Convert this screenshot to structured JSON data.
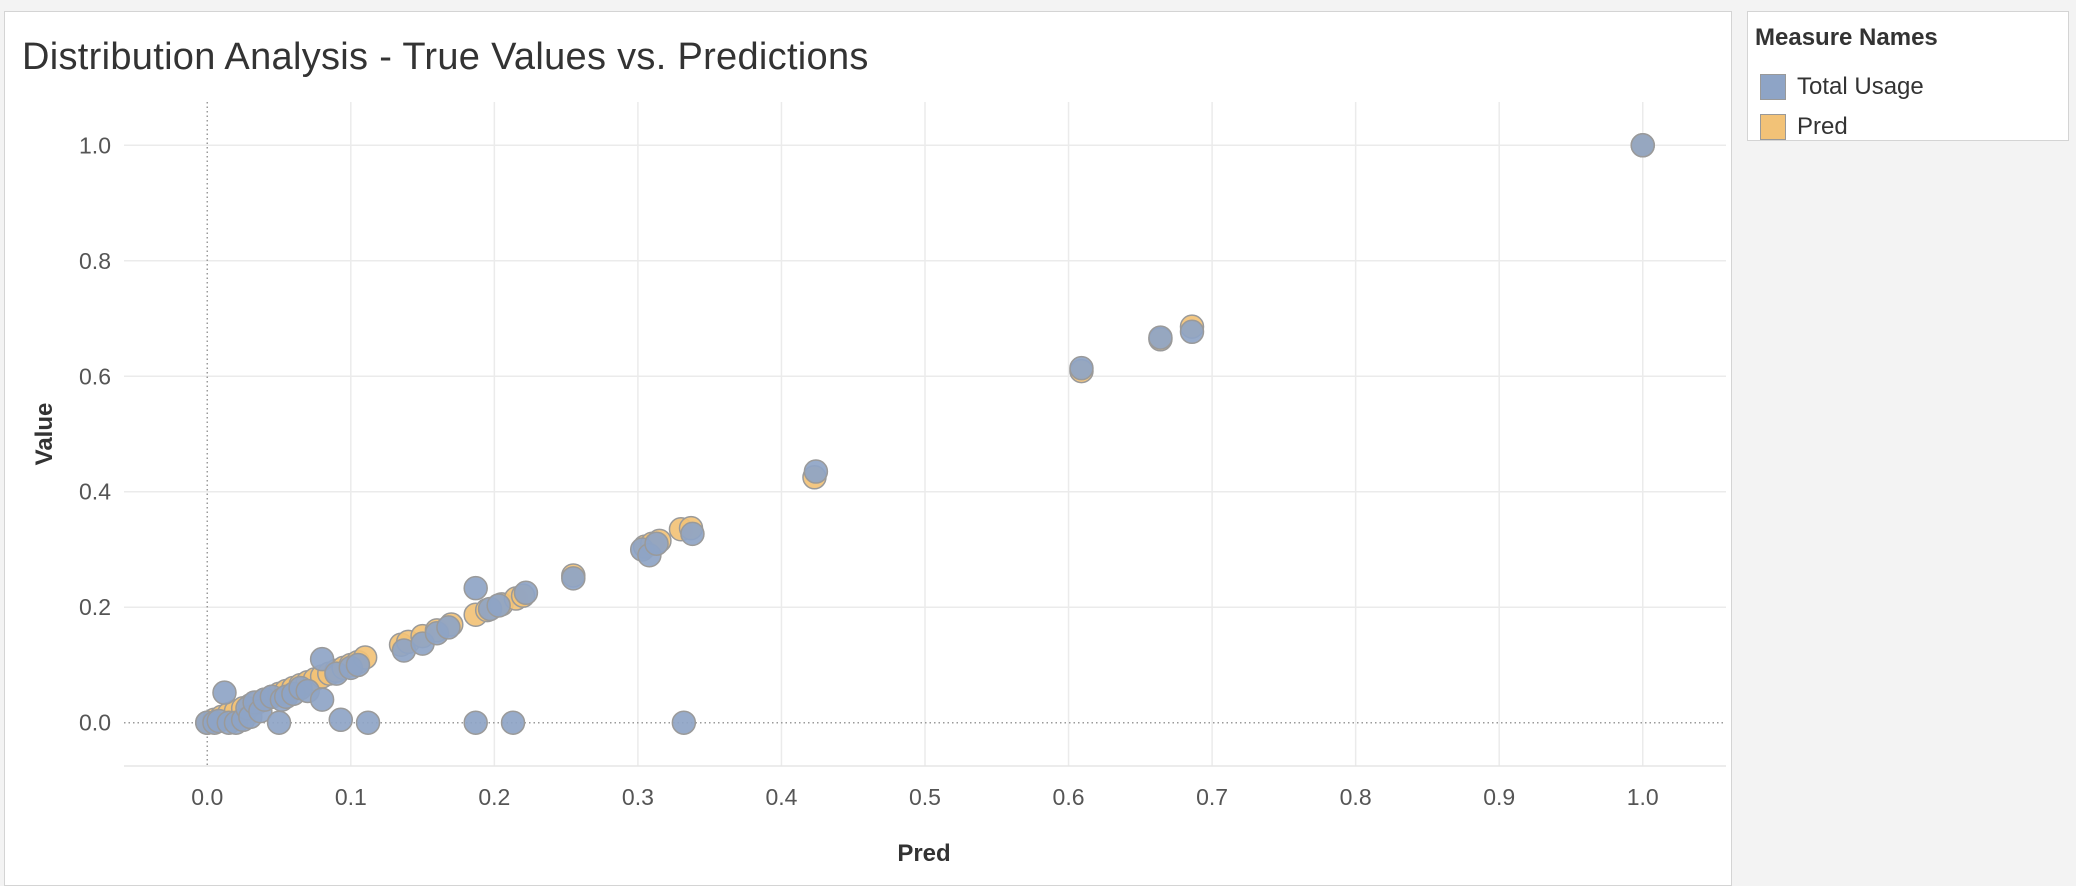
{
  "legend": {
    "title": "Measure Names",
    "items": [
      {
        "label": "Total Usage",
        "color": "#8ea4c6"
      },
      {
        "label": "Pred",
        "color": "#f2c277"
      }
    ]
  },
  "chart_data": {
    "type": "scatter",
    "title": "Distribution Analysis - True Values vs. Predictions",
    "xlabel": "Pred",
    "ylabel": "Value",
    "xlim": [
      -0.058,
      1.058
    ],
    "ylim": [
      -0.075,
      1.075
    ],
    "x_ticks": [
      "0.0",
      "0.1",
      "0.2",
      "0.3",
      "0.4",
      "0.5",
      "0.6",
      "0.7",
      "0.8",
      "0.9",
      "1.0"
    ],
    "y_ticks": [
      "0.0",
      "0.2",
      "0.4",
      "0.6",
      "0.8",
      "1.0"
    ],
    "grid": true,
    "legend_position": "right",
    "series": [
      {
        "name": "Pred",
        "color": "#f2c277",
        "points": [
          [
            0.0,
            0.0
          ],
          [
            0.005,
            0.005
          ],
          [
            0.01,
            0.01
          ],
          [
            0.015,
            0.015
          ],
          [
            0.02,
            0.02
          ],
          [
            0.025,
            0.025
          ],
          [
            0.03,
            0.03
          ],
          [
            0.035,
            0.035
          ],
          [
            0.04,
            0.04
          ],
          [
            0.045,
            0.045
          ],
          [
            0.05,
            0.05
          ],
          [
            0.055,
            0.055
          ],
          [
            0.06,
            0.06
          ],
          [
            0.065,
            0.065
          ],
          [
            0.07,
            0.07
          ],
          [
            0.075,
            0.075
          ],
          [
            0.08,
            0.08
          ],
          [
            0.085,
            0.085
          ],
          [
            0.09,
            0.09
          ],
          [
            0.095,
            0.095
          ],
          [
            0.1,
            0.1
          ],
          [
            0.105,
            0.105
          ],
          [
            0.11,
            0.113
          ],
          [
            0.135,
            0.135
          ],
          [
            0.14,
            0.14
          ],
          [
            0.15,
            0.15
          ],
          [
            0.16,
            0.16
          ],
          [
            0.17,
            0.17
          ],
          [
            0.187,
            0.187
          ],
          [
            0.195,
            0.195
          ],
          [
            0.205,
            0.205
          ],
          [
            0.215,
            0.215
          ],
          [
            0.22,
            0.22
          ],
          [
            0.255,
            0.255
          ],
          [
            0.305,
            0.305
          ],
          [
            0.31,
            0.31
          ],
          [
            0.315,
            0.315
          ],
          [
            0.33,
            0.335
          ],
          [
            0.337,
            0.337
          ],
          [
            0.423,
            0.425
          ],
          [
            0.609,
            0.609
          ],
          [
            0.664,
            0.664
          ],
          [
            0.686,
            0.686
          ],
          [
            1.0,
            1.0
          ]
        ]
      },
      {
        "name": "Total Usage",
        "color": "#8ea4c6",
        "points": [
          [
            0.0,
            0.0
          ],
          [
            0.005,
            0.0
          ],
          [
            0.008,
            0.003
          ],
          [
            0.012,
            0.052
          ],
          [
            0.015,
            0.0
          ],
          [
            0.02,
            0.0
          ],
          [
            0.025,
            0.005
          ],
          [
            0.028,
            0.025
          ],
          [
            0.03,
            0.01
          ],
          [
            0.033,
            0.035
          ],
          [
            0.037,
            0.02
          ],
          [
            0.04,
            0.04
          ],
          [
            0.045,
            0.045
          ],
          [
            0.05,
            0.0
          ],
          [
            0.052,
            0.04
          ],
          [
            0.055,
            0.045
          ],
          [
            0.06,
            0.05
          ],
          [
            0.065,
            0.06
          ],
          [
            0.07,
            0.055
          ],
          [
            0.08,
            0.04
          ],
          [
            0.08,
            0.11
          ],
          [
            0.09,
            0.085
          ],
          [
            0.093,
            0.005
          ],
          [
            0.1,
            0.095
          ],
          [
            0.105,
            0.1
          ],
          [
            0.112,
            0.0
          ],
          [
            0.137,
            0.125
          ],
          [
            0.15,
            0.137
          ],
          [
            0.16,
            0.155
          ],
          [
            0.168,
            0.165
          ],
          [
            0.187,
            0.0
          ],
          [
            0.187,
            0.233
          ],
          [
            0.197,
            0.197
          ],
          [
            0.203,
            0.203
          ],
          [
            0.213,
            0.0
          ],
          [
            0.222,
            0.225
          ],
          [
            0.255,
            0.25
          ],
          [
            0.303,
            0.3
          ],
          [
            0.308,
            0.29
          ],
          [
            0.313,
            0.31
          ],
          [
            0.332,
            0.0
          ],
          [
            0.338,
            0.327
          ],
          [
            0.424,
            0.435
          ],
          [
            0.609,
            0.614
          ],
          [
            0.664,
            0.667
          ],
          [
            0.686,
            0.677
          ],
          [
            1.0,
            1.0
          ]
        ]
      }
    ]
  }
}
